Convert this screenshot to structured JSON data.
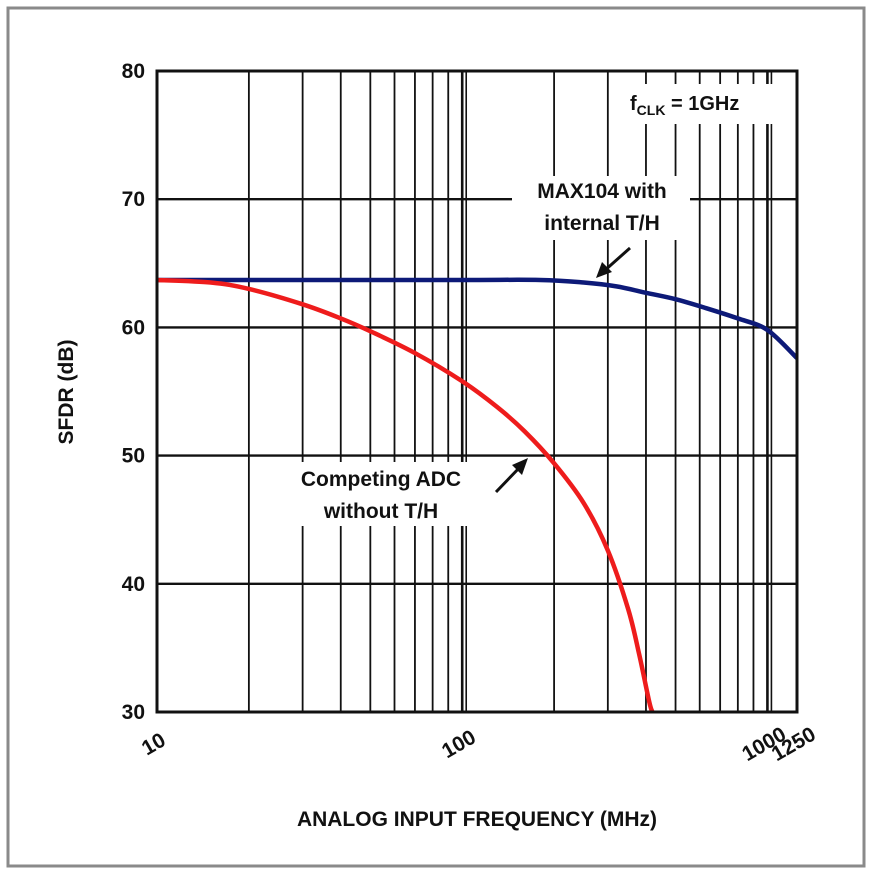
{
  "chart_data": {
    "type": "line",
    "title": "",
    "xlabel": "ANALOG INPUT FREQUENCY (MHz)",
    "ylabel": "SFDR (dB)",
    "x_scale": "log",
    "xlim": [
      10,
      1250
    ],
    "ylim": [
      30,
      80
    ],
    "x_tick_labels": [
      "10",
      "100",
      "1000",
      "1250"
    ],
    "x_tick_values": [
      10,
      100,
      1000,
      1250
    ],
    "y_tick_labels": [
      "30",
      "40",
      "50",
      "60",
      "70",
      "80"
    ],
    "y_tick_values": [
      30,
      40,
      50,
      60,
      70,
      80
    ],
    "grid": true,
    "series": [
      {
        "color": "#0d1a78",
        "x": [
          10,
          30,
          100,
          180,
          250,
          320,
          400,
          500,
          630,
          800,
          1000,
          1250
        ],
        "y": [
          63.7,
          63.7,
          63.7,
          63.7,
          63.5,
          63.2,
          62.7,
          62.2,
          61.5,
          60.7,
          59.8,
          57.6
        ]
      },
      {
        "color": "#ee1c1c",
        "x": [
          10,
          15,
          20,
          30,
          40,
          50,
          70,
          100,
          130,
          160,
          200,
          250,
          300,
          350,
          380,
          410,
          420
        ],
        "y": [
          63.7,
          63.5,
          63.0,
          61.8,
          60.7,
          59.7,
          58.0,
          55.8,
          53.8,
          51.9,
          49.4,
          46.3,
          42.6,
          38.0,
          34.5,
          30.8,
          30.0
        ]
      }
    ],
    "annotations": {
      "fclk_main": "f",
      "fclk_sub": "CLK",
      "fclk_rest": " = 1GHz",
      "max104_line1": "MAX104 with",
      "max104_line2": "internal T/H",
      "competing_line1": "Competing ADC",
      "competing_line2": "without T/H"
    }
  }
}
